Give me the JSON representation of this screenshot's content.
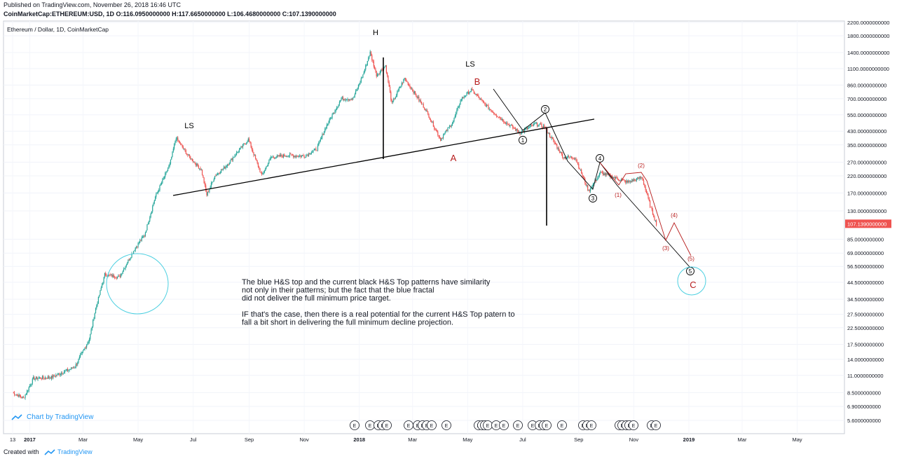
{
  "header": {
    "published": "Published on TradingView.com, November 26, 2018 16:46 UTC",
    "symbol": "CoinMarketCap:ETHEREUM:USD, 1D",
    "ohlc": "O:116.0950000000 H:117.6650000000 L:106.4680000000 C:107.1390000000"
  },
  "footer": {
    "created_with": "Created with",
    "brand": "TradingView"
  },
  "chart_attribution": "Chart by TradingView",
  "chart_data": {
    "type": "candlestick",
    "title": "Ethereum / Dollar, 1D, CoinMarketCap",
    "yscale": "log",
    "y_ticks": [
      "2200.0000000000",
      "1800.0000000000",
      "1400.0000000000",
      "1100.0000000000",
      "860.0000000000",
      "700.0000000000",
      "550.0000000000",
      "430.0000000000",
      "350.0000000000",
      "270.0000000000",
      "220.0000000000",
      "170.0000000000",
      "130.0000000000",
      "107.1390000000",
      "85.0000000000",
      "69.0000000000",
      "56.5000000000",
      "44.5000000000",
      "34.5000000000",
      "27.5000000000",
      "22.5000000000",
      "17.5000000000",
      "14.0000000000",
      "11.0000000000",
      "8.5000000000",
      "6.9000000000",
      "5.6000000000"
    ],
    "last_price": "107.1390000000",
    "x_ticks": [
      "13",
      "2017",
      "Mar",
      "May",
      "Jul",
      "Sep",
      "Nov",
      "2018",
      "Mar",
      "May",
      "Jul",
      "Sep",
      "Nov",
      "2019",
      "Mar",
      "May"
    ],
    "price_path": [
      [
        "2016-12-13",
        8.5
      ],
      [
        "2016-12-25",
        7.8
      ],
      [
        "2017-01-05",
        10.5
      ],
      [
        "2017-01-25",
        10.7
      ],
      [
        "2017-02-20",
        12.5
      ],
      [
        "2017-03-08",
        19
      ],
      [
        "2017-03-15",
        30
      ],
      [
        "2017-03-25",
        50
      ],
      [
        "2017-04-10",
        48
      ],
      [
        "2017-04-28",
        75
      ],
      [
        "2017-05-08",
        90
      ],
      [
        "2017-05-20",
        160
      ],
      [
        "2017-06-05",
        260
      ],
      [
        "2017-06-12",
        390
      ],
      [
        "2017-06-25",
        300
      ],
      [
        "2017-07-10",
        240
      ],
      [
        "2017-07-16",
        165
      ],
      [
        "2017-07-25",
        220
      ],
      [
        "2017-08-05",
        250
      ],
      [
        "2017-08-31",
        380
      ],
      [
        "2017-09-15",
        220
      ],
      [
        "2017-09-25",
        290
      ],
      [
        "2017-10-15",
        300
      ],
      [
        "2017-11-01",
        295
      ],
      [
        "2017-11-15",
        330
      ],
      [
        "2017-11-25",
        460
      ],
      [
        "2017-12-12",
        700
      ],
      [
        "2017-12-25",
        700
      ],
      [
        "2018-01-05",
        1000
      ],
      [
        "2018-01-13",
        1400
      ],
      [
        "2018-01-20",
        1000
      ],
      [
        "2018-01-30",
        1150
      ],
      [
        "2018-02-06",
        650
      ],
      [
        "2018-02-20",
        950
      ],
      [
        "2018-03-15",
        600
      ],
      [
        "2018-04-01",
        380
      ],
      [
        "2018-04-15",
        500
      ],
      [
        "2018-04-24",
        700
      ],
      [
        "2018-05-05",
        800
      ],
      [
        "2018-05-25",
        600
      ],
      [
        "2018-06-10",
        500
      ],
      [
        "2018-06-28",
        420
      ],
      [
        "2018-07-15",
        480
      ],
      [
        "2018-07-25",
        460
      ],
      [
        "2018-08-15",
        290
      ],
      [
        "2018-08-28",
        290
      ],
      [
        "2018-09-12",
        175
      ],
      [
        "2018-09-25",
        230
      ],
      [
        "2018-10-15",
        210
      ],
      [
        "2018-10-25",
        200
      ],
      [
        "2018-11-10",
        215
      ],
      [
        "2018-11-20",
        135
      ],
      [
        "2018-11-26",
        107
      ]
    ],
    "annotations": {
      "text_box": [
        "The blue H&S top and the current black H&S Top patterns have similarity",
        "not only in their patterns; but the fact that the blue fractal",
        "did not deliver the full minimum price target.",
        "",
        "IF that's the case, then there is a real potential for the current H&S Top patern to",
        "fall a bit short in delivering the full minimum decline projection."
      ],
      "pattern_labels": [
        "LS",
        "H",
        "LS"
      ],
      "abc_labels": [
        "A",
        "B",
        "C"
      ],
      "wave_labels": [
        "1",
        "2",
        "3",
        "4",
        "5"
      ],
      "wave_sub_labels": [
        "(1)",
        "(2)",
        "(3)",
        "(4)",
        "(5)"
      ],
      "earnings_marker": "E"
    },
    "colors": {
      "up": "#26a69a",
      "down": "#ef5350",
      "last_price_bg": "#ef5350",
      "blue_fractal": "#4dd0e1",
      "pattern": "#000000",
      "abc_label": "#b71c1c"
    }
  }
}
